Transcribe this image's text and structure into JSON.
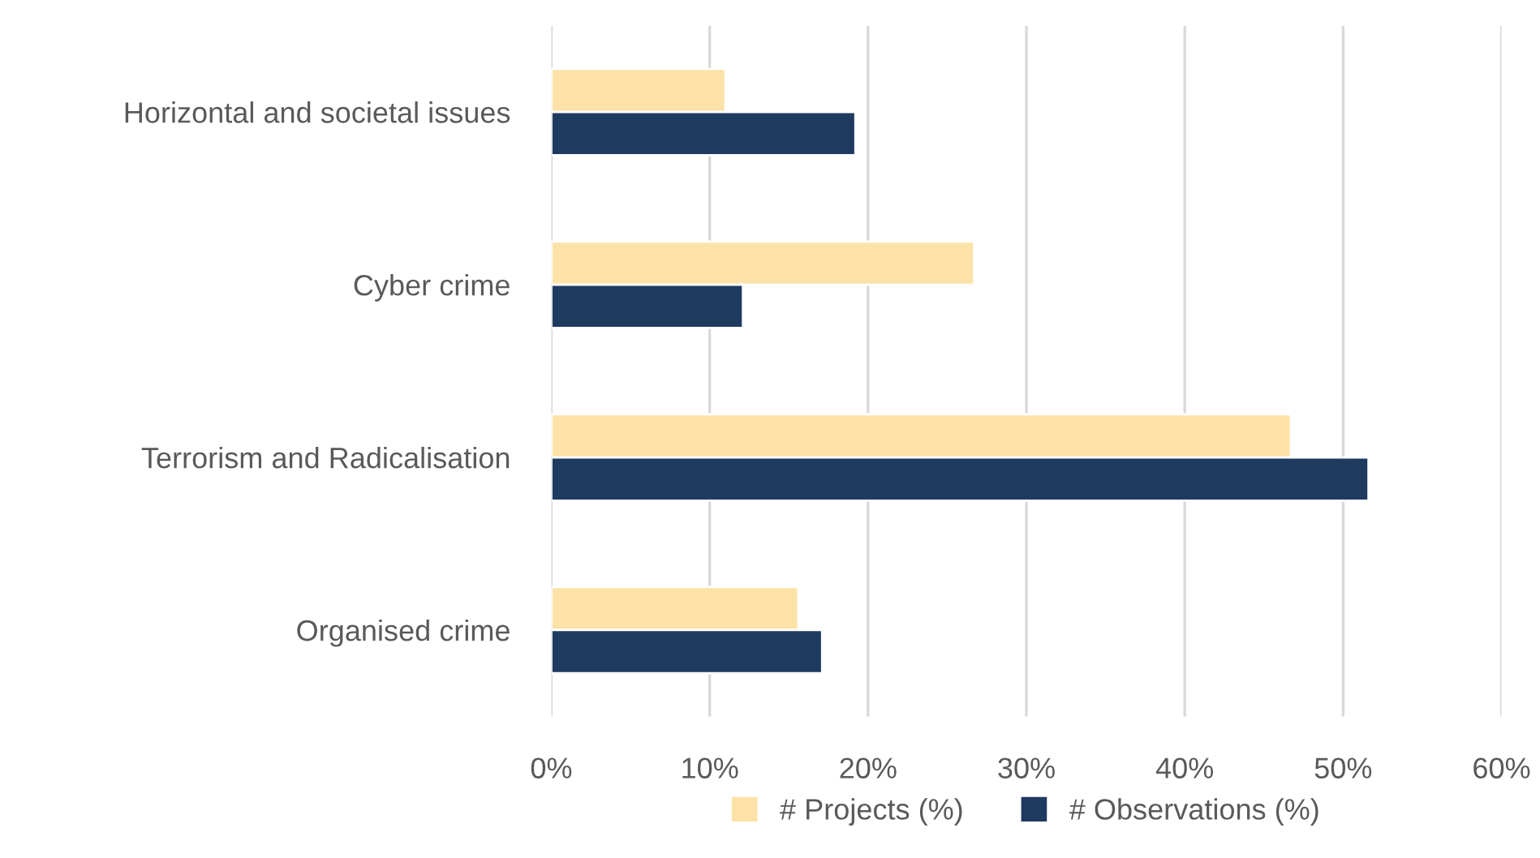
{
  "chart_data": {
    "type": "bar",
    "orientation": "horizontal",
    "categories": [
      "Horizontal and societal issues",
      "Cyber crime",
      "Terrorism and Radicalisation",
      "Organised crime"
    ],
    "series": [
      {
        "name": "# Projects (%)",
        "color": "#fde2a8",
        "values": [
          11.0,
          26.7,
          46.7,
          15.6
        ]
      },
      {
        "name": "# Observations (%)",
        "color": "#1f3a5f",
        "values": [
          19.2,
          12.1,
          51.6,
          17.1
        ]
      }
    ],
    "xlim": [
      0,
      60
    ],
    "xticks": [
      {
        "value": 0,
        "label": "0%"
      },
      {
        "value": 10,
        "label": "10%"
      },
      {
        "value": 20,
        "label": "20%"
      },
      {
        "value": 30,
        "label": "30%"
      },
      {
        "value": 40,
        "label": "40%"
      },
      {
        "value": 50,
        "label": "50%"
      },
      {
        "value": 60,
        "label": "60%"
      }
    ],
    "grid": "x",
    "legend": "bottom"
  }
}
